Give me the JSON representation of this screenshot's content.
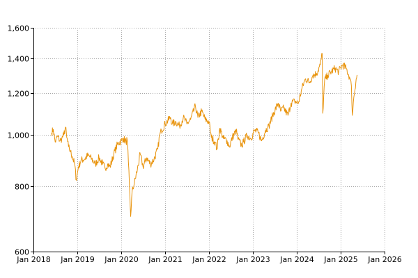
{
  "chart_data": {
    "type": "line",
    "title": "",
    "xlabel": "",
    "ylabel": "",
    "y_scale": "log",
    "grid": true,
    "legend": "none",
    "xlim": [
      "2018-01-01",
      "2026-01-01"
    ],
    "ylim": [
      600,
      1600
    ],
    "x_ticks": [
      {
        "date": "2018-01-01",
        "label": "Jan 2018"
      },
      {
        "date": "2019-01-01",
        "label": "Jan 2019"
      },
      {
        "date": "2020-01-01",
        "label": "Jan 2020"
      },
      {
        "date": "2021-01-01",
        "label": "Jan 2021"
      },
      {
        "date": "2022-01-01",
        "label": "Jan 2022"
      },
      {
        "date": "2023-01-01",
        "label": "Jan 2023"
      },
      {
        "date": "2024-01-01",
        "label": "Jan 2024"
      },
      {
        "date": "2025-01-01",
        "label": "Jan 2025"
      },
      {
        "date": "2026-01-01",
        "label": "Jan 2026"
      }
    ],
    "y_ticks": [
      {
        "value": 600,
        "label": "600"
      },
      {
        "value": 800,
        "label": "800"
      },
      {
        "value": 1000,
        "label": "1,000"
      },
      {
        "value": 1200,
        "label": "1,200"
      },
      {
        "value": 1400,
        "label": "1,400"
      },
      {
        "value": 1600,
        "label": "1,600"
      }
    ],
    "series": [
      {
        "color": "#e8930c",
        "points": [
          [
            "2018-06-01",
            1010
          ],
          [
            "2018-06-15",
            1025
          ],
          [
            "2018-07-01",
            970
          ],
          [
            "2018-07-20",
            995
          ],
          [
            "2018-08-10",
            975
          ],
          [
            "2018-08-25",
            985
          ],
          [
            "2018-09-10",
            1000
          ],
          [
            "2018-09-25",
            1035
          ],
          [
            "2018-10-05",
            990
          ],
          [
            "2018-10-20",
            950
          ],
          [
            "2018-11-05",
            930
          ],
          [
            "2018-11-20",
            910
          ],
          [
            "2018-12-10",
            880
          ],
          [
            "2018-12-24",
            820
          ],
          [
            "2019-01-10",
            870
          ],
          [
            "2019-02-01",
            895
          ],
          [
            "2019-03-01",
            900
          ],
          [
            "2019-04-01",
            915
          ],
          [
            "2019-05-01",
            900
          ],
          [
            "2019-06-01",
            880
          ],
          [
            "2019-07-01",
            905
          ],
          [
            "2019-08-01",
            880
          ],
          [
            "2019-08-20",
            865
          ],
          [
            "2019-09-10",
            880
          ],
          [
            "2019-10-01",
            870
          ],
          [
            "2019-11-01",
            920
          ],
          [
            "2019-12-01",
            960
          ],
          [
            "2020-01-01",
            975
          ],
          [
            "2020-01-20",
            985
          ],
          [
            "2020-02-10",
            970
          ],
          [
            "2020-02-20",
            980
          ],
          [
            "2020-03-01",
            890
          ],
          [
            "2020-03-10",
            800
          ],
          [
            "2020-03-20",
            700
          ],
          [
            "2020-04-01",
            780
          ],
          [
            "2020-04-20",
            810
          ],
          [
            "2020-05-15",
            860
          ],
          [
            "2020-06-08",
            920
          ],
          [
            "2020-07-01",
            870
          ],
          [
            "2020-08-01",
            905
          ],
          [
            "2020-09-01",
            880
          ],
          [
            "2020-10-01",
            900
          ],
          [
            "2020-11-01",
            940
          ],
          [
            "2020-11-15",
            995
          ],
          [
            "2020-12-01",
            1020
          ],
          [
            "2021-01-01",
            1050
          ],
          [
            "2021-02-15",
            1080
          ],
          [
            "2021-03-01",
            1050
          ],
          [
            "2021-04-01",
            1060
          ],
          [
            "2021-05-01",
            1040
          ],
          [
            "2021-06-01",
            1080
          ],
          [
            "2021-07-01",
            1050
          ],
          [
            "2021-08-01",
            1070
          ],
          [
            "2021-09-10",
            1135
          ],
          [
            "2021-10-01",
            1080
          ],
          [
            "2021-11-01",
            1110
          ],
          [
            "2021-12-01",
            1070
          ],
          [
            "2022-01-01",
            1060
          ],
          [
            "2022-01-20",
            990
          ],
          [
            "2022-02-20",
            970
          ],
          [
            "2022-03-08",
            940
          ],
          [
            "2022-04-01",
            1030
          ],
          [
            "2022-05-01",
            985
          ],
          [
            "2022-06-01",
            975
          ],
          [
            "2022-06-20",
            950
          ],
          [
            "2022-07-15",
            990
          ],
          [
            "2022-08-15",
            1020
          ],
          [
            "2022-09-01",
            980
          ],
          [
            "2022-09-30",
            955
          ],
          [
            "2022-10-15",
            970
          ],
          [
            "2022-11-15",
            1000
          ],
          [
            "2022-12-15",
            985
          ],
          [
            "2023-01-15",
            1020
          ],
          [
            "2023-02-15",
            1010
          ],
          [
            "2023-03-15",
            975
          ],
          [
            "2023-04-15",
            1020
          ],
          [
            "2023-05-15",
            1040
          ],
          [
            "2023-06-15",
            1090
          ],
          [
            "2023-07-31",
            1150
          ],
          [
            "2023-08-20",
            1110
          ],
          [
            "2023-09-15",
            1125
          ],
          [
            "2023-10-20",
            1090
          ],
          [
            "2023-11-15",
            1150
          ],
          [
            "2023-12-15",
            1160
          ],
          [
            "2024-01-15",
            1150
          ],
          [
            "2024-02-15",
            1230
          ],
          [
            "2024-03-15",
            1280
          ],
          [
            "2024-04-15",
            1260
          ],
          [
            "2024-05-15",
            1300
          ],
          [
            "2024-06-15",
            1310
          ],
          [
            "2024-07-15",
            1360
          ],
          [
            "2024-07-31",
            1430
          ],
          [
            "2024-08-05",
            1100
          ],
          [
            "2024-08-20",
            1270
          ],
          [
            "2024-09-15",
            1300
          ],
          [
            "2024-10-15",
            1320
          ],
          [
            "2024-11-15",
            1340
          ],
          [
            "2024-12-15",
            1320
          ],
          [
            "2025-01-15",
            1360
          ],
          [
            "2025-02-15",
            1340
          ],
          [
            "2025-03-15",
            1290
          ],
          [
            "2025-03-31",
            1240
          ],
          [
            "2025-04-08",
            1090
          ],
          [
            "2025-04-20",
            1180
          ],
          [
            "2025-05-10",
            1280
          ],
          [
            "2025-05-20",
            1300
          ]
        ]
      }
    ]
  }
}
